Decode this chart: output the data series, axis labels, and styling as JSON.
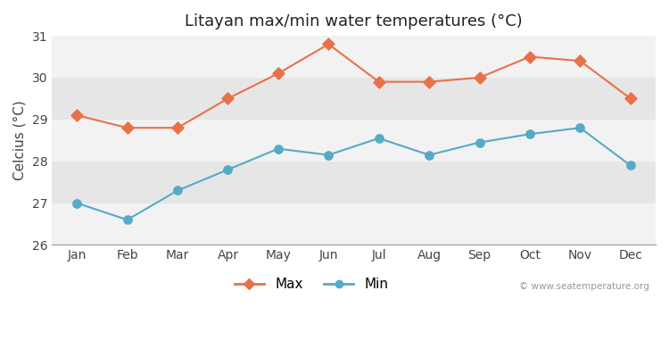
{
  "months": [
    "Jan",
    "Feb",
    "Mar",
    "Apr",
    "May",
    "Jun",
    "Jul",
    "Aug",
    "Sep",
    "Oct",
    "Nov",
    "Dec"
  ],
  "max_temps": [
    29.1,
    28.8,
    28.8,
    29.5,
    30.1,
    30.8,
    29.9,
    29.9,
    30.0,
    30.5,
    30.4,
    29.5
  ],
  "min_temps": [
    27.0,
    26.6,
    27.3,
    27.8,
    28.3,
    28.15,
    28.55,
    28.15,
    28.45,
    28.65,
    28.8,
    27.9
  ],
  "max_color": "#e8714a",
  "min_color": "#55aac8",
  "title": "Litayan max/min water temperatures (°C)",
  "ylabel": "Celcius (°C)",
  "ylim": [
    26,
    31
  ],
  "yticks": [
    26,
    27,
    28,
    29,
    30,
    31
  ],
  "bg_color": "#ffffff",
  "band_light": "#f2f2f2",
  "band_dark": "#e6e6e6",
  "watermark": "© www.seatemperature.org",
  "legend_max": "Max",
  "legend_min": "Min"
}
